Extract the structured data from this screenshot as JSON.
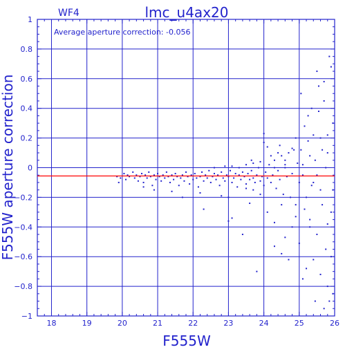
{
  "chart_data": {
    "type": "scatter",
    "title": "lmc_u4ax20",
    "chip_label": "WF4",
    "annotation": "Average aperture correction: -0.056",
    "xlabel": "F555W",
    "ylabel": "F555W aperture correction",
    "xlim": [
      17.6,
      26.0
    ],
    "ylim": [
      -1.0,
      1.0
    ],
    "x_ticks": [
      18,
      19,
      20,
      21,
      22,
      23,
      24,
      25,
      26
    ],
    "y_ticks": [
      -1,
      -0.8,
      -0.6,
      -0.4,
      -0.2,
      0,
      0.2,
      0.4,
      0.6,
      0.8,
      1
    ],
    "x_tick_labels": [
      "18",
      "19",
      "20",
      "21",
      "22",
      "23",
      "24",
      "25",
      "26"
    ],
    "y_tick_labels": [
      "−1",
      "−0.8",
      "−0.6",
      "−0.4",
      "−0.2",
      "0",
      "0.2",
      "0.4",
      "0.6",
      "0.8",
      "1"
    ],
    "grid": true,
    "reference_line": {
      "y": -0.056,
      "color": "#ff0000"
    },
    "colors": {
      "axes": "#2222cc",
      "points": "#2222cc",
      "reference": "#ff0000"
    },
    "series": [
      {
        "values": [
          [
            19.85,
            -0.06
          ],
          [
            19.9,
            -0.1
          ],
          [
            19.95,
            -0.07
          ],
          [
            20.05,
            -0.04
          ],
          [
            20.1,
            -0.08
          ],
          [
            20.15,
            -0.05
          ],
          [
            20.2,
            -0.06
          ],
          [
            20.3,
            -0.03
          ],
          [
            20.35,
            -0.07
          ],
          [
            20.4,
            -0.05
          ],
          [
            20.45,
            -0.09
          ],
          [
            20.5,
            -0.06
          ],
          [
            20.55,
            -0.04
          ],
          [
            20.6,
            -0.1
          ],
          [
            20.65,
            -0.05
          ],
          [
            20.7,
            -0.07
          ],
          [
            20.75,
            -0.03
          ],
          [
            20.8,
            -0.06
          ],
          [
            20.85,
            -0.12
          ],
          [
            20.9,
            -0.05
          ],
          [
            20.95,
            -0.08
          ],
          [
            21.0,
            -0.04
          ],
          [
            21.05,
            -0.06
          ],
          [
            21.1,
            -0.09
          ],
          [
            21.15,
            -0.05
          ],
          [
            21.2,
            -0.07
          ],
          [
            21.25,
            -0.03
          ],
          [
            21.3,
            -0.06
          ],
          [
            21.35,
            -0.1
          ],
          [
            21.4,
            -0.05
          ],
          [
            21.45,
            -0.08
          ],
          [
            21.5,
            -0.04
          ],
          [
            21.55,
            -0.06
          ],
          [
            21.6,
            -0.12
          ],
          [
            21.65,
            -0.07
          ],
          [
            21.7,
            -0.05
          ],
          [
            21.75,
            -0.09
          ],
          [
            21.8,
            -0.03
          ],
          [
            21.85,
            -0.06
          ],
          [
            21.9,
            -0.11
          ],
          [
            21.95,
            -0.05
          ],
          [
            22.0,
            -0.08
          ],
          [
            22.05,
            -0.04
          ],
          [
            22.1,
            -0.07
          ],
          [
            22.15,
            -0.13
          ],
          [
            22.2,
            -0.06
          ],
          [
            22.25,
            -0.03
          ],
          [
            22.3,
            -0.09
          ],
          [
            22.35,
            -0.05
          ],
          [
            22.4,
            -0.07
          ],
          [
            22.45,
            -0.02
          ],
          [
            22.5,
            -0.1
          ],
          [
            22.55,
            -0.06
          ],
          [
            22.6,
            -0.04
          ],
          [
            22.65,
            -0.08
          ],
          [
            22.7,
            -0.05
          ],
          [
            22.75,
            -0.12
          ],
          [
            22.8,
            -0.03
          ],
          [
            22.85,
            -0.07
          ],
          [
            22.9,
            -0.09
          ],
          [
            22.95,
            -0.05
          ],
          [
            23.0,
            -0.06
          ],
          [
            23.05,
            -0.02
          ],
          [
            23.1,
            -0.1
          ],
          [
            23.15,
            -0.07
          ],
          [
            23.2,
            -0.04
          ],
          [
            23.25,
            -0.13
          ],
          [
            23.3,
            -0.05
          ],
          [
            23.35,
            -0.08
          ],
          [
            23.4,
            -0.03
          ],
          [
            23.45,
            -0.06
          ],
          [
            23.5,
            -0.11
          ],
          [
            23.55,
            -0.04
          ],
          [
            23.6,
            -0.08
          ],
          [
            23.65,
            -0.02
          ],
          [
            23.7,
            -0.07
          ],
          [
            23.75,
            -0.1
          ],
          [
            23.8,
            -0.05
          ],
          [
            23.85,
            0.0
          ],
          [
            23.9,
            -0.09
          ],
          [
            23.95,
            -0.06
          ],
          [
            24.0,
            -0.12
          ],
          [
            24.05,
            -0.03
          ],
          [
            24.1,
            -0.07
          ],
          [
            24.15,
            0.02
          ],
          [
            24.2,
            -0.1
          ],
          [
            24.25,
            -0.05
          ],
          [
            24.3,
            0.05
          ],
          [
            24.35,
            -0.14
          ],
          [
            24.4,
            -0.02
          ],
          [
            24.45,
            -0.08
          ],
          [
            24.5,
            0.08
          ],
          [
            24.55,
            -0.18
          ],
          [
            24.6,
            0.0
          ],
          [
            24.65,
            -0.06
          ],
          [
            24.7,
            0.1
          ],
          [
            24.75,
            -0.2
          ],
          [
            24.8,
            -0.04
          ],
          [
            24.85,
            0.12
          ],
          [
            24.9,
            -0.25
          ],
          [
            24.95,
            0.03
          ],
          [
            25.0,
            -0.1
          ],
          [
            20.6,
            -0.13
          ],
          [
            20.9,
            -0.15
          ],
          [
            21.4,
            -0.16
          ],
          [
            21.7,
            -0.2
          ],
          [
            22.2,
            -0.17
          ],
          [
            22.3,
            -0.28
          ],
          [
            22.8,
            -0.19
          ],
          [
            23.0,
            -0.2
          ],
          [
            23.1,
            -0.34
          ],
          [
            23.4,
            -0.45
          ],
          [
            23.6,
            -0.24
          ],
          [
            23.9,
            -0.18
          ],
          [
            24.1,
            -0.3
          ],
          [
            24.3,
            -0.37
          ],
          [
            24.5,
            -0.25
          ],
          [
            23.5,
            -0.14
          ],
          [
            23.7,
            -0.15
          ],
          [
            22.6,
            0.0
          ],
          [
            22.9,
            0.01
          ],
          [
            23.1,
            0.01
          ],
          [
            23.3,
            0.0
          ],
          [
            23.5,
            0.02
          ],
          [
            23.7,
            0.03
          ],
          [
            23.9,
            0.04
          ],
          [
            24.0,
            0.17
          ],
          [
            24.1,
            0.14
          ],
          [
            24.2,
            0.08
          ],
          [
            24.4,
            0.1
          ],
          [
            24.6,
            0.05
          ],
          [
            24.8,
            0.13
          ],
          [
            24.9,
            0.2
          ],
          [
            24.0,
            0.23
          ],
          [
            24.3,
            0.0
          ],
          [
            24.45,
            0.15
          ],
          [
            24.6,
            0.02
          ],
          [
            23.65,
            0.05
          ],
          [
            23.0,
            -0.36
          ],
          [
            23.8,
            -0.7
          ],
          [
            24.3,
            -0.53
          ],
          [
            24.5,
            -0.58
          ],
          [
            24.6,
            -0.47
          ],
          [
            24.7,
            -0.62
          ],
          [
            24.8,
            -0.4
          ],
          [
            25.0,
            -0.51
          ],
          [
            24.9,
            -0.33
          ],
          [
            25.05,
            0.12
          ],
          [
            25.1,
            -0.05
          ],
          [
            25.15,
            0.28
          ],
          [
            25.2,
            -0.2
          ],
          [
            25.25,
            0.18
          ],
          [
            25.3,
            -0.35
          ],
          [
            25.35,
            0.4
          ],
          [
            25.4,
            -0.1
          ],
          [
            25.45,
            0.05
          ],
          [
            25.5,
            -0.45
          ],
          [
            25.55,
            0.55
          ],
          [
            25.6,
            0.2
          ],
          [
            25.65,
            -0.25
          ],
          [
            25.7,
            0.45
          ],
          [
            25.75,
            -0.55
          ],
          [
            25.8,
            0.1
          ],
          [
            25.85,
            0.75
          ],
          [
            25.9,
            -0.3
          ],
          [
            25.95,
            0.3
          ],
          [
            25.5,
            0.65
          ],
          [
            25.7,
            0.58
          ],
          [
            25.9,
            0.68
          ],
          [
            25.3,
            0.08
          ],
          [
            25.4,
            0.22
          ],
          [
            25.6,
            -0.15
          ],
          [
            25.8,
            -0.38
          ],
          [
            25.9,
            -0.6
          ],
          [
            25.2,
            -0.68
          ],
          [
            25.4,
            -0.62
          ],
          [
            25.6,
            -0.72
          ],
          [
            25.8,
            -0.8
          ],
          [
            25.95,
            -0.85
          ],
          [
            25.1,
            -0.75
          ],
          [
            25.3,
            -0.4
          ],
          [
            25.45,
            -0.9
          ],
          [
            25.7,
            -0.95
          ],
          [
            25.85,
            -0.9
          ],
          [
            25.25,
            0.35
          ],
          [
            25.55,
            0.38
          ],
          [
            25.75,
            0.0
          ],
          [
            25.05,
            0.5
          ],
          [
            25.15,
            -0.28
          ],
          [
            25.35,
            -0.12
          ],
          [
            25.65,
            0.12
          ],
          [
            25.95,
            -0.15
          ],
          [
            25.1,
            0.02
          ],
          [
            25.5,
            -0.05
          ],
          [
            25.8,
            0.22
          ]
        ]
      }
    ]
  }
}
